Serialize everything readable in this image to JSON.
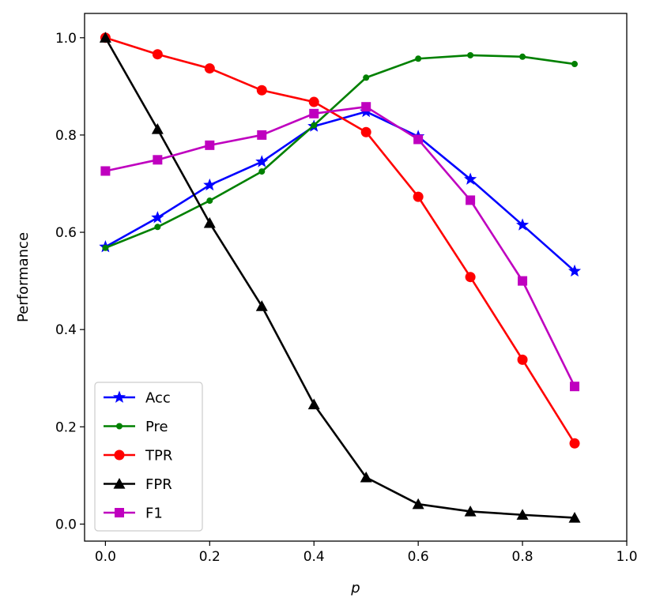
{
  "chart_data": {
    "type": "line",
    "title": "",
    "xlabel": "p",
    "ylabel": "Performance",
    "xlim": [
      -0.04,
      1.0
    ],
    "ylim": [
      -0.035,
      1.05
    ],
    "xticks": [
      0.0,
      0.2,
      0.4,
      0.6,
      0.8,
      1.0
    ],
    "xtick_labels": [
      "0.0",
      "0.2",
      "0.4",
      "0.6",
      "0.8",
      "1.0"
    ],
    "yticks": [
      0.0,
      0.2,
      0.4,
      0.6,
      0.8,
      1.0
    ],
    "ytick_labels": [
      "0.0",
      "0.2",
      "0.4",
      "0.6",
      "0.8",
      "1.0"
    ],
    "grid": false,
    "legend_position": "lower-left",
    "x": [
      0.0,
      0.1,
      0.2,
      0.3,
      0.4,
      0.5,
      0.6,
      0.7,
      0.8,
      0.9
    ],
    "series": [
      {
        "name": "Acc",
        "color": "#0000ff",
        "marker": "star",
        "values": [
          0.57,
          0.63,
          0.697,
          0.745,
          0.818,
          0.848,
          0.797,
          0.709,
          0.615,
          0.52
        ]
      },
      {
        "name": "Pre",
        "color": "#008000",
        "marker": "dot",
        "values": [
          0.568,
          0.611,
          0.665,
          0.725,
          0.82,
          0.918,
          0.957,
          0.964,
          0.961,
          0.946
        ]
      },
      {
        "name": "TPR",
        "color": "#ff0000",
        "marker": "circle",
        "values": [
          1.0,
          0.966,
          0.937,
          0.892,
          0.868,
          0.806,
          0.673,
          0.508,
          0.338,
          0.166
        ]
      },
      {
        "name": "FPR",
        "color": "#000000",
        "marker": "triangle",
        "values": [
          1.0,
          0.812,
          0.619,
          0.448,
          0.246,
          0.096,
          0.041,
          0.026,
          0.019,
          0.013
        ]
      },
      {
        "name": "F1",
        "color": "#bf00bf",
        "marker": "square",
        "values": [
          0.726,
          0.749,
          0.779,
          0.8,
          0.844,
          0.858,
          0.791,
          0.666,
          0.5,
          0.283
        ]
      }
    ]
  }
}
